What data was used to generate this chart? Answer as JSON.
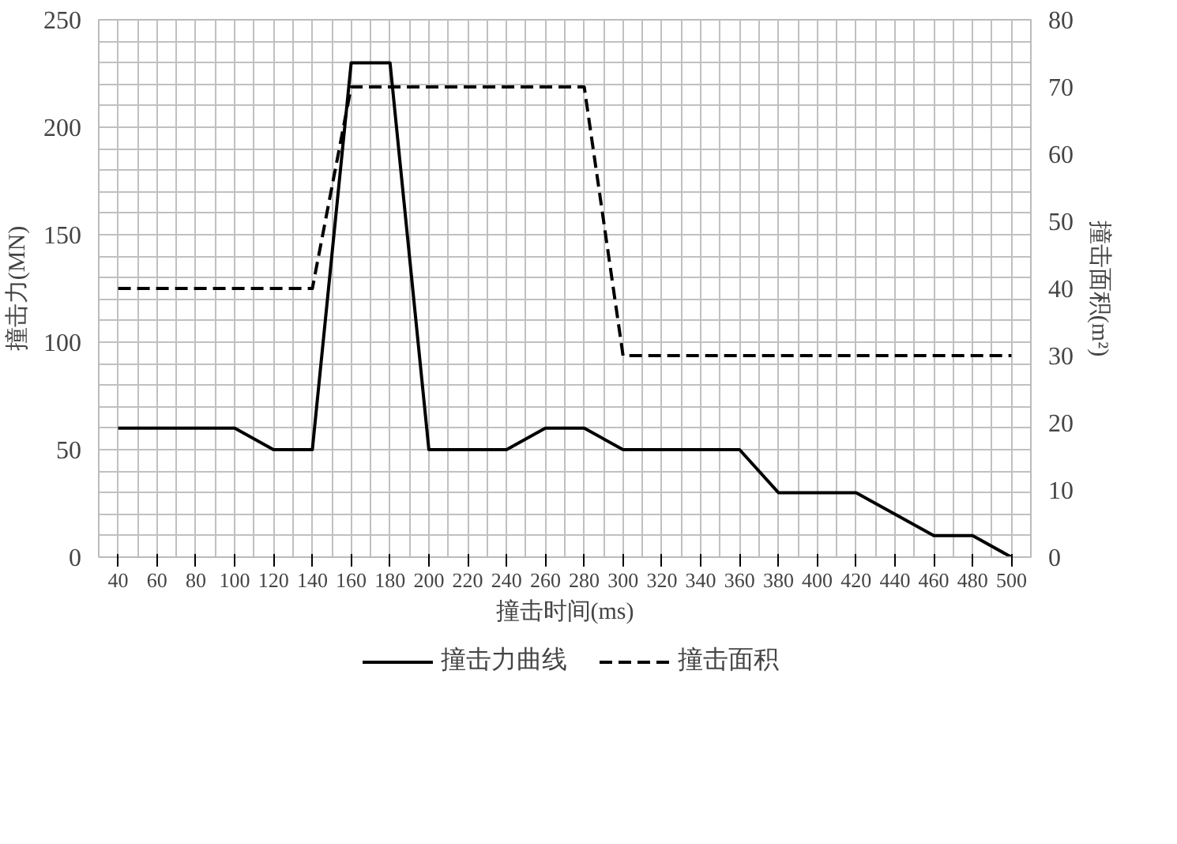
{
  "chart_data": {
    "type": "line",
    "xlabel": "撞击时间(ms)",
    "ylabel": "撞击力(MN)",
    "y2label": "撞击面积(m²)",
    "xlim": [
      30,
      510
    ],
    "xticks": [
      40,
      60,
      80,
      100,
      120,
      140,
      160,
      180,
      200,
      220,
      240,
      260,
      280,
      300,
      320,
      340,
      360,
      380,
      400,
      420,
      440,
      460,
      480,
      500
    ],
    "ylim": [
      0,
      250
    ],
    "yticks": [
      0,
      50,
      100,
      150,
      200,
      250
    ],
    "y2lim": [
      0,
      80
    ],
    "y2ticks": [
      0,
      10,
      20,
      30,
      40,
      50,
      60,
      70,
      80
    ],
    "grid": true,
    "legend": "bottom",
    "marker": "none",
    "series": [
      {
        "name": "撞击力曲线",
        "color": "#000000",
        "line_style": "solid",
        "x": [
          40,
          100,
          120,
          140,
          160,
          180,
          200,
          240,
          260,
          280,
          300,
          360,
          380,
          420,
          460,
          480,
          500
        ],
        "values": [
          60,
          60,
          50,
          50,
          230,
          230,
          50,
          50,
          60,
          60,
          50,
          50,
          30,
          30,
          10,
          10,
          0
        ]
      },
      {
        "name": "撞击面积",
        "color": "#000000",
        "line_style": "dashed",
        "axis": "y2",
        "x": [
          40,
          140,
          160,
          280,
          300,
          500
        ],
        "values": [
          40,
          40,
          70,
          70,
          30,
          30
        ]
      }
    ]
  }
}
